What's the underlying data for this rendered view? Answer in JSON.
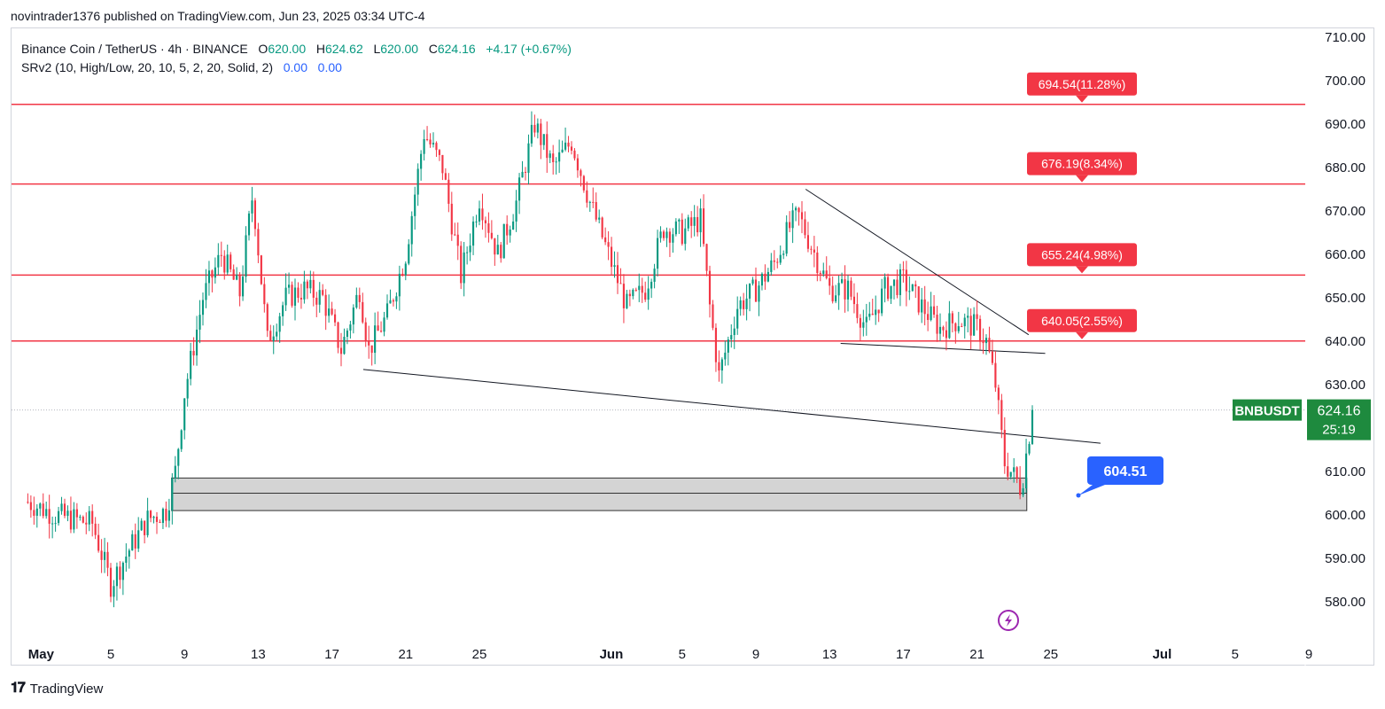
{
  "header": {
    "publisher_text": "novintrader1376 published on TradingView.com, Jun 23, 2025 03:34 UTC-4"
  },
  "legend": {
    "symbol": "Binance Coin / TetherUS · 4h · BINANCE",
    "open_label": "O",
    "open": "620.00",
    "high_label": "H",
    "high": "624.62",
    "low_label": "L",
    "low": "620.00",
    "close_label": "C",
    "close": "624.16",
    "change": "+4.17 (+0.67%)",
    "indicator": "SRv2 (10, High/Low, 20, 10, 5, 2, 20, Solid, 2)",
    "indicator_v1": "0.00",
    "indicator_v2": "0.00"
  },
  "footer": {
    "logo": "𝟏𝟕",
    "brand": "TradingView"
  },
  "colors": {
    "up": "#089981",
    "down": "#f23645",
    "level": "#f23645",
    "accent": "#2962ff",
    "price_tag": "#1e8a3e"
  },
  "chart_data": {
    "type": "candlestick",
    "symbol": "BNBUSDT",
    "ylim": [
      572,
      712
    ],
    "y_ticks": [
      "710.00",
      "700.00",
      "690.00",
      "680.00",
      "670.00",
      "660.00",
      "650.00",
      "640.00",
      "630.00",
      "620.00",
      "610.00",
      "600.00",
      "590.00",
      "580.00"
    ],
    "x_ticks": [
      {
        "label": "May",
        "day": 1
      },
      {
        "label": "5",
        "day": 5
      },
      {
        "label": "9",
        "day": 9
      },
      {
        "label": "13",
        "day": 13
      },
      {
        "label": "17",
        "day": 17
      },
      {
        "label": "21",
        "day": 21
      },
      {
        "label": "25",
        "day": 25
      },
      {
        "label": "Jun",
        "day": 32
      },
      {
        "label": "5",
        "day": 36
      },
      {
        "label": "9",
        "day": 40
      },
      {
        "label": "13",
        "day": 44
      },
      {
        "label": "17",
        "day": 48
      },
      {
        "label": "21",
        "day": 52
      },
      {
        "label": "25",
        "day": 56
      },
      {
        "label": "Jul",
        "day": 62
      },
      {
        "label": "5",
        "day": 66
      },
      {
        "label": "9",
        "day": 70
      }
    ],
    "resistance_levels": [
      {
        "price": 694.54,
        "label": "694.54(11.28%)"
      },
      {
        "price": 676.19,
        "label": "676.19(8.34%)"
      },
      {
        "price": 655.24,
        "label": "655.24(4.98%)"
      },
      {
        "price": 640.05,
        "label": "640.05(2.55%)"
      }
    ],
    "support_zone": {
      "low": 601,
      "mid": 605,
      "high": 608.5,
      "from_day": 8.3,
      "to_day": 54.7
    },
    "trendlines": [
      {
        "from": [
          18.7,
          633.5
        ],
        "to": [
          58.7,
          616.5
        ]
      },
      {
        "from": [
          42.7,
          675
        ],
        "to": [
          54.8,
          641.5
        ]
      },
      {
        "from": [
          44.6,
          639.5
        ],
        "to": [
          55.7,
          637.2
        ]
      }
    ],
    "target_label": "604.51",
    "target_point": {
      "day": 57.5,
      "price": 604.5
    },
    "last_price": "624.16",
    "countdown": "25:19",
    "current_price": 624.16,
    "anchors": [
      [
        0.5,
        603
      ],
      [
        2,
        600
      ],
      [
        4,
        598
      ],
      [
        5,
        584
      ],
      [
        6,
        592
      ],
      [
        7,
        599
      ],
      [
        8,
        601
      ],
      [
        8.5,
        610
      ],
      [
        9,
        628
      ],
      [
        10,
        650
      ],
      [
        11,
        660
      ],
      [
        12,
        651
      ],
      [
        12.7,
        674
      ],
      [
        13.5,
        640
      ],
      [
        14.5,
        650
      ],
      [
        15.5,
        652
      ],
      [
        16.5,
        650
      ],
      [
        17.5,
        638
      ],
      [
        18.5,
        652
      ],
      [
        19,
        638
      ],
      [
        20,
        646
      ],
      [
        21,
        660
      ],
      [
        22,
        688
      ],
      [
        23,
        680
      ],
      [
        24,
        655
      ],
      [
        25,
        673
      ],
      [
        26,
        660
      ],
      [
        27,
        672
      ],
      [
        28,
        690
      ],
      [
        29,
        680
      ],
      [
        30,
        686
      ],
      [
        31,
        672
      ],
      [
        32,
        660
      ],
      [
        33,
        648
      ],
      [
        34,
        652
      ],
      [
        35,
        666
      ],
      [
        36,
        665
      ],
      [
        37,
        668
      ],
      [
        37.5,
        648
      ],
      [
        38,
        632
      ],
      [
        39,
        648
      ],
      [
        40,
        652
      ],
      [
        41,
        658
      ],
      [
        41.8,
        666
      ],
      [
        42.3,
        669
      ],
      [
        43,
        662
      ],
      [
        44,
        652
      ],
      [
        45,
        652
      ],
      [
        46,
        643
      ],
      [
        47,
        652
      ],
      [
        48,
        654
      ],
      [
        49,
        648
      ],
      [
        50,
        643
      ],
      [
        51,
        645
      ],
      [
        52,
        643
      ],
      [
        52.5,
        640
      ],
      [
        53,
        630
      ],
      [
        53.5,
        612
      ],
      [
        54,
        609
      ],
      [
        54.4,
        606
      ],
      [
        54.8,
        618
      ],
      [
        55.1,
        624.16
      ]
    ]
  }
}
